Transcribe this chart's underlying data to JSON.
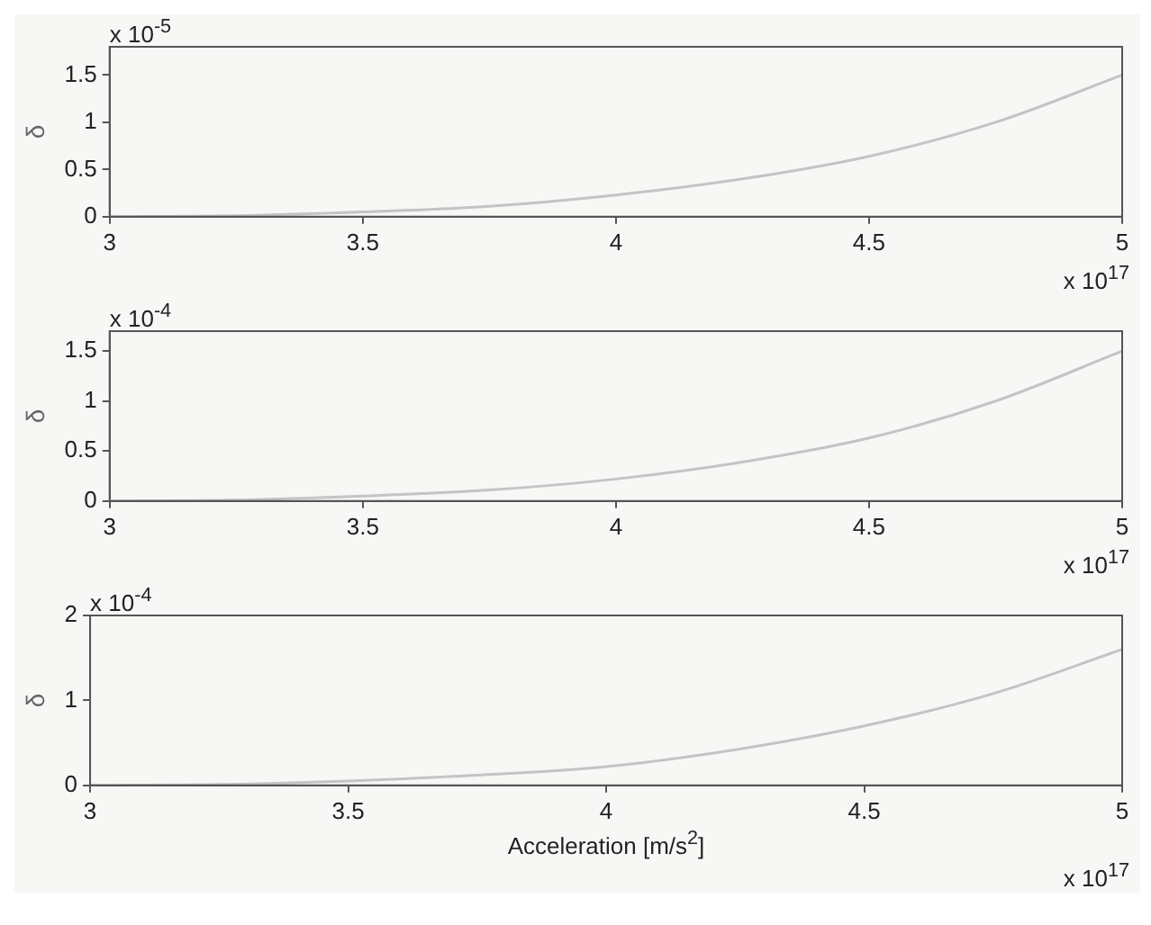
{
  "chart_data": [
    {
      "type": "line",
      "ylabel": "δ",
      "x": [
        3,
        3.25,
        3.5,
        3.75,
        4,
        4.25,
        4.5,
        4.75,
        5
      ],
      "series": [
        {
          "color": "#c4c4c4",
          "values": [
            0,
            0.01,
            0.05,
            0.11,
            0.23,
            0.4,
            0.64,
            1.0,
            1.5
          ]
        }
      ],
      "xlim": [
        3,
        5
      ],
      "xticks": [
        3,
        3.5,
        4,
        4.5,
        5
      ],
      "ylim": [
        0,
        1.8
      ],
      "yticks": [
        0,
        0.5,
        1,
        1.5
      ],
      "grid": false,
      "legend": false,
      "annotations": [
        "x 10$^{-5}$",
        "x 10$^{17}$"
      ]
    },
    {
      "type": "line",
      "ylabel": "δ",
      "x": [
        3,
        3.25,
        3.5,
        3.75,
        4,
        4.25,
        4.5,
        4.75,
        5
      ],
      "series": [
        {
          "color": "#c4c4c4",
          "values": [
            0,
            0.01,
            0.05,
            0.11,
            0.22,
            0.39,
            0.63,
            1.0,
            1.5
          ]
        }
      ],
      "xlim": [
        3,
        5
      ],
      "xticks": [
        3,
        3.5,
        4,
        4.5,
        5
      ],
      "ylim": [
        0,
        1.7
      ],
      "yticks": [
        0,
        0.5,
        1,
        1.5
      ],
      "grid": false,
      "legend": false,
      "annotations": [
        "x 10$^{-4}$",
        "x 10$^{17}$"
      ]
    },
    {
      "type": "line",
      "xlabel": "Acceleration [m/s$^{2}$]",
      "ylabel": "δ",
      "x": [
        3,
        3.25,
        3.5,
        3.75,
        4,
        4.25,
        4.5,
        4.75,
        5
      ],
      "series": [
        {
          "color": "#c4c4c4",
          "values": [
            0,
            0.01,
            0.05,
            0.12,
            0.22,
            0.42,
            0.7,
            1.08,
            1.6
          ]
        }
      ],
      "xlim": [
        3,
        5
      ],
      "xticks": [
        3,
        3.5,
        4,
        4.5,
        5
      ],
      "ylim": [
        0,
        2
      ],
      "yticks": [
        0,
        1,
        2
      ],
      "grid": false,
      "legend": false,
      "annotations": [
        "x 10$^{-4}$",
        "x 10$^{17}$"
      ]
    }
  ]
}
